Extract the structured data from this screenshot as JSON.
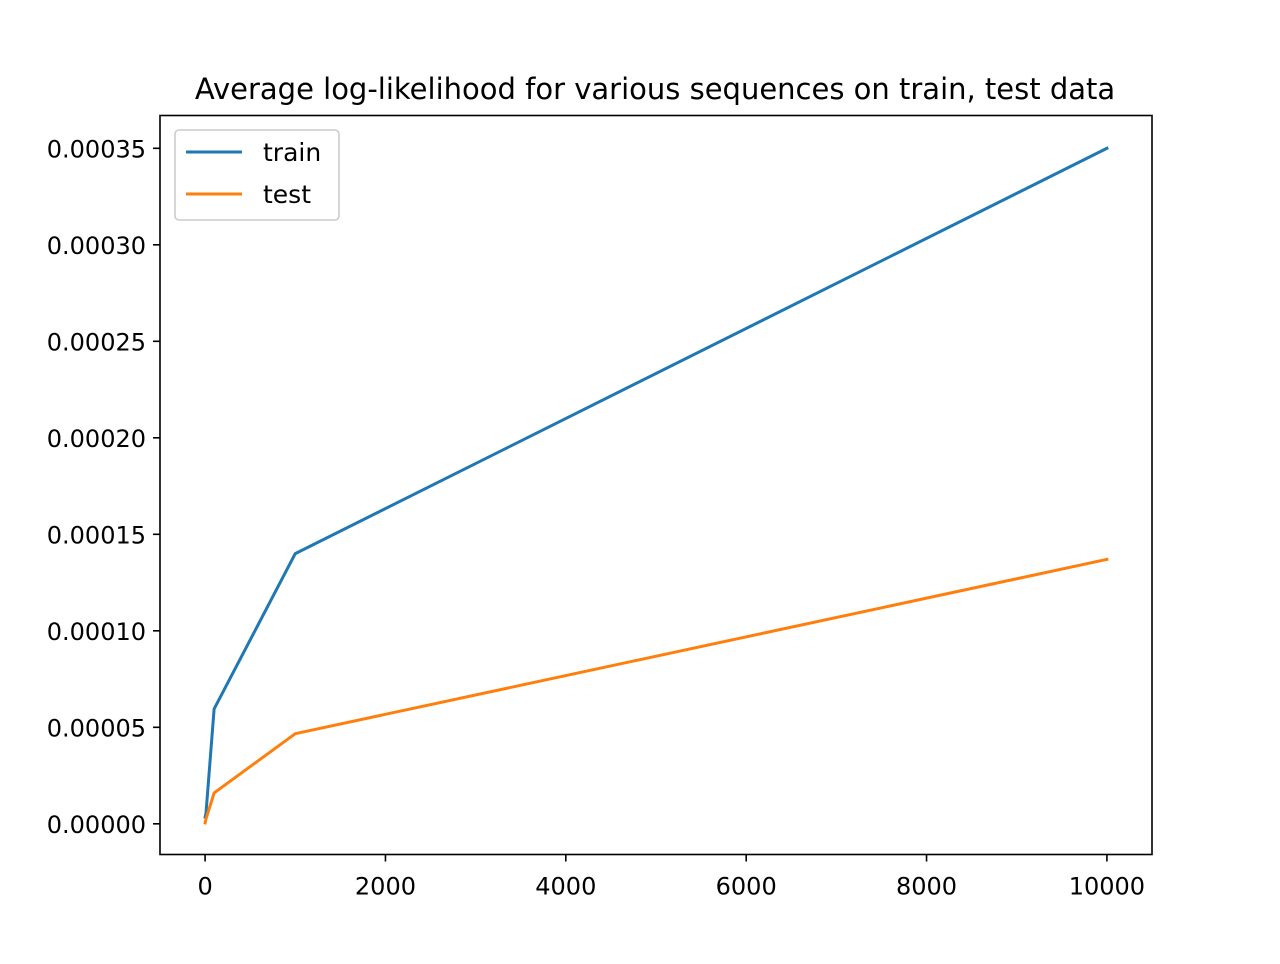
{
  "chart_data": {
    "type": "line",
    "title": "Average log-likelihood for various sequences on train, test data",
    "xlabel": "",
    "ylabel": "",
    "xlim": [
      -500,
      10500
    ],
    "ylim": [
      -1.59e-05,
      0.000367
    ],
    "x_ticks": [
      0,
      2000,
      4000,
      6000,
      8000,
      10000
    ],
    "x_tick_labels": [
      "0",
      "2000",
      "4000",
      "6000",
      "8000",
      "10000"
    ],
    "y_ticks": [
      0,
      5e-05,
      0.0001,
      0.00015,
      0.0002,
      0.00025,
      0.0003,
      0.00035
    ],
    "y_tick_labels": [
      "0.00000",
      "0.00005",
      "0.00010",
      "0.00015",
      "0.00020",
      "0.00025",
      "0.00030",
      "0.00035"
    ],
    "grid": false,
    "legend_position": "top-left",
    "series": [
      {
        "name": "train",
        "color": "#1f77b4",
        "x": [
          1,
          10,
          100,
          1000,
          10000
        ],
        "y": [
          3.5e-06,
          5.5e-06,
          5.95e-05,
          0.00014,
          0.00035
        ]
      },
      {
        "name": "test",
        "color": "#ff7f0e",
        "x": [
          1,
          10,
          100,
          1000,
          10000
        ],
        "y": [
          5e-07,
          2.5e-06,
          1.6e-05,
          4.67e-05,
          0.000137
        ]
      }
    ]
  }
}
